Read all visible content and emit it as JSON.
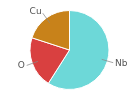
{
  "chart_data": {
    "type": "pie",
    "categories": [
      "Nb",
      "O",
      "Cu"
    ],
    "values": [
      59,
      21,
      20
    ],
    "colors": [
      "#6DD8D8",
      "#D94040",
      "#C8821A"
    ]
  }
}
